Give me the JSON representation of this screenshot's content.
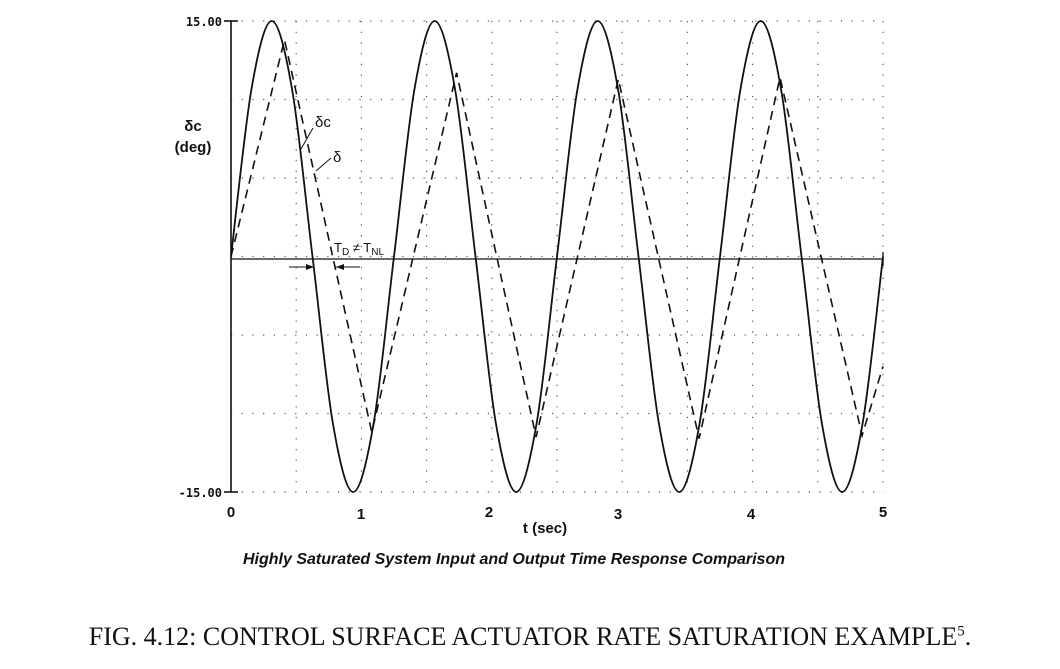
{
  "figure": {
    "title": "FIG. 4.12: CONTROL SURFACE ACTUATOR RATE SATURATION EXAMPLE",
    "title_ref": "5",
    "title_end": "."
  },
  "chart_data": {
    "type": "line",
    "caption": "Highly Saturated System Input and Output Time Response Comparison",
    "xlabel": "t (sec)",
    "ylabel_line1": "δc",
    "ylabel_line2": "(deg)",
    "xlim": [
      0,
      5
    ],
    "ylim": [
      -15,
      15
    ],
    "x_ticks": [
      "0",
      "1",
      "2",
      "3",
      "4",
      "5"
    ],
    "y_ticks": [
      "15.00",
      "-15.00"
    ],
    "grid": true,
    "annotation": {
      "text_main": "T",
      "text_sub1": "D",
      "text_mid": " ≠ T",
      "text_sub2": "NL"
    },
    "series": [
      {
        "name": "δc",
        "style": "solid",
        "color": "#111111",
        "x": [
          0,
          0.156,
          0.312,
          0.469,
          0.625,
          0.781,
          0.937,
          1.094,
          1.25,
          1.406,
          1.562,
          1.719,
          1.875,
          2.031,
          2.187,
          2.344,
          2.5,
          2.656,
          2.812,
          2.969,
          3.125,
          3.281,
          3.437,
          3.594,
          3.75,
          3.906,
          4.062,
          4.219,
          4.375,
          4.531,
          4.687,
          4.844,
          5.0
        ],
        "y": [
          0,
          10.6,
          15,
          10.6,
          0,
          -10.6,
          -15,
          -10.6,
          0,
          10.6,
          15,
          10.6,
          0,
          -10.6,
          -15,
          -10.6,
          0,
          10.6,
          15,
          10.6,
          0,
          -10.6,
          -15,
          -10.6,
          0,
          10.6,
          15,
          10.6,
          0,
          -10.6,
          -15,
          -10.6,
          0
        ]
      },
      {
        "name": "δ",
        "style": "dashed",
        "color": "#111111",
        "x": [
          0,
          0.41,
          1.08,
          1.73,
          2.34,
          2.97,
          3.59,
          4.21,
          4.84,
          5.0
        ],
        "y": [
          0,
          13.8,
          -11.2,
          11.7,
          -11.5,
          11.3,
          -11.6,
          11.4,
          -11.4,
          -7.0
        ]
      }
    ]
  }
}
